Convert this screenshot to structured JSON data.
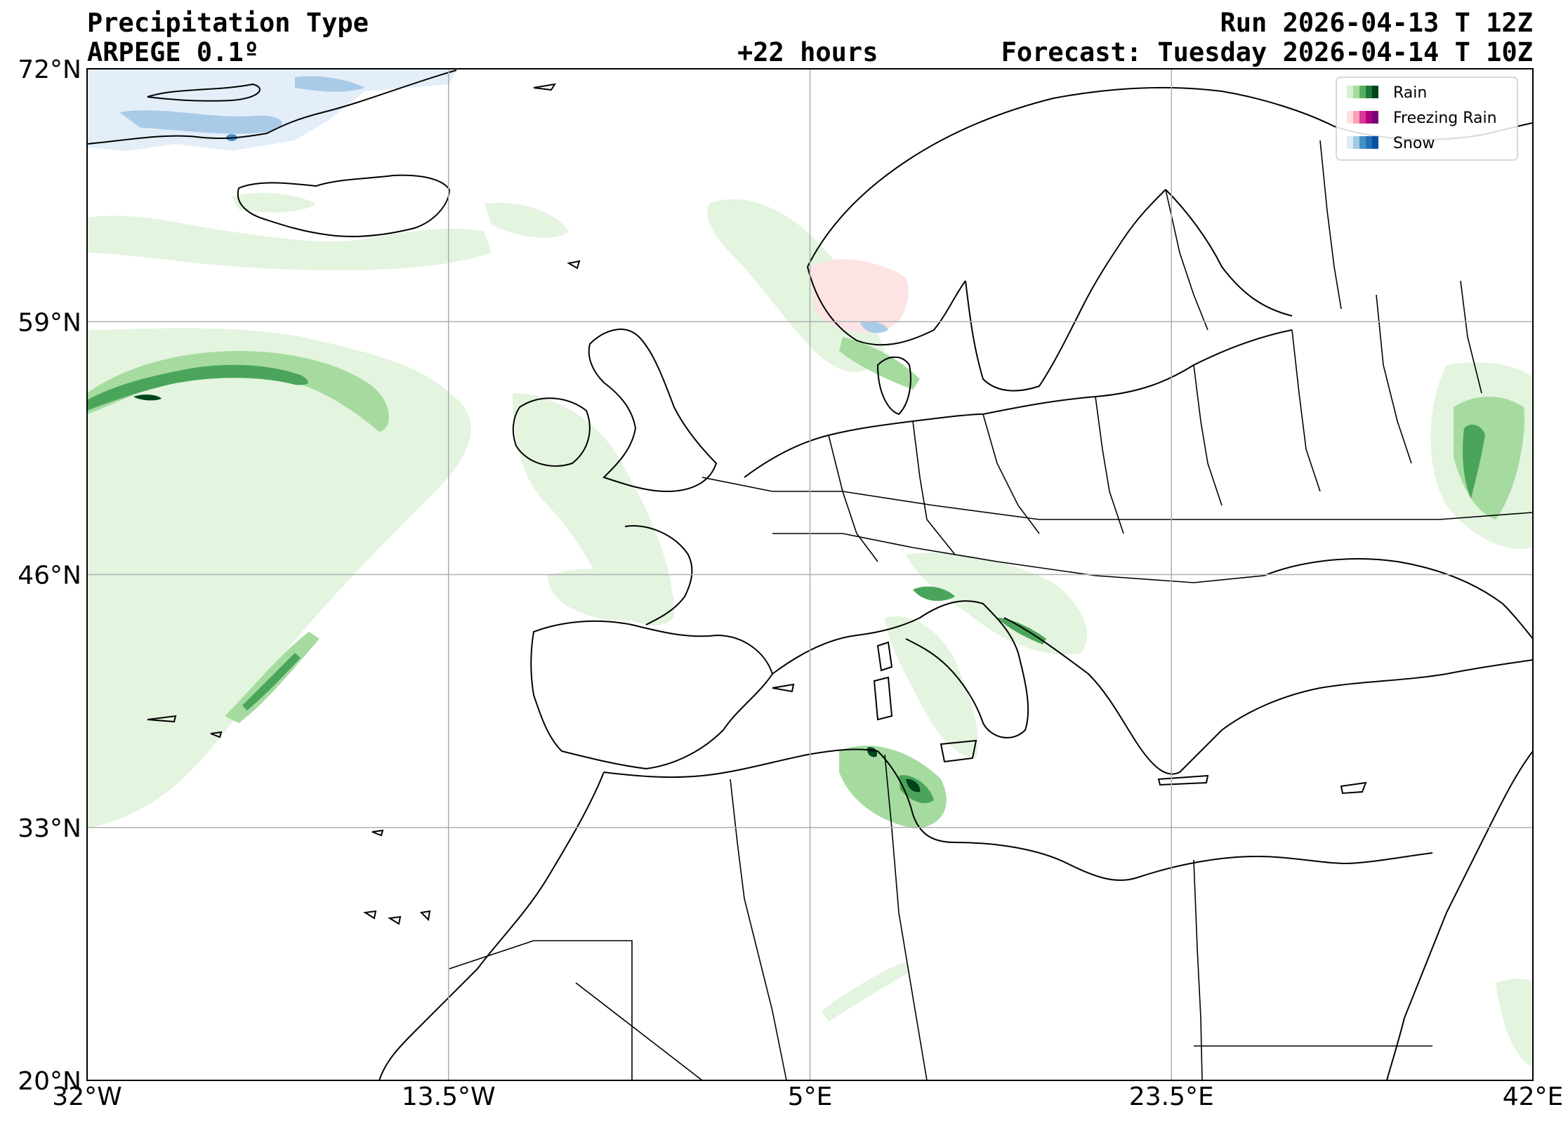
{
  "header": {
    "title": "Precipitation Type",
    "model": "ARPEGE 0.1º",
    "lead": "+22 hours",
    "run": "Run 2026-04-13 T 12Z",
    "forecast": "Forecast: Tuesday 2026-04-14 T 10Z"
  },
  "axes": {
    "lat_ticks": [
      "72°N",
      "59°N",
      "46°N",
      "33°N",
      "20°N"
    ],
    "lon_ticks": [
      "32°W",
      "13.5°W",
      "5°E",
      "23.5°E",
      "42°E"
    ],
    "lat_range": [
      20,
      72
    ],
    "lon_range": [
      -32,
      42
    ],
    "lat_values": [
      72,
      59,
      46,
      33,
      20
    ],
    "lon_values": [
      -32,
      -13.5,
      5,
      23.5,
      42
    ],
    "grid": true
  },
  "legend": {
    "placement": "top-right",
    "items": [
      {
        "label": "Rain",
        "colors": [
          "#d6f0d0",
          "#a6dba0",
          "#5aae61",
          "#1b7837",
          "#00441b"
        ]
      },
      {
        "label": "Freezing Rain",
        "colors": [
          "#fde0dd",
          "#fa9fb5",
          "#dd3497",
          "#ae017e",
          "#7a0177"
        ]
      },
      {
        "label": "Snow",
        "colors": [
          "#deebf7",
          "#9ecae1",
          "#4292c6",
          "#2171b5",
          "#08519c"
        ]
      }
    ]
  },
  "colors": {
    "rain_light": "#e3f4df",
    "rain_mid": "#a6dba0",
    "rain_dark": "#4aa55a",
    "rain_darkest": "#00441b",
    "snow_light": "#e3eef9",
    "snow_mid": "#a9cbe8",
    "freezing_light": "#fde3e3",
    "coast": "#000000",
    "grid": "#b0b0b0"
  }
}
